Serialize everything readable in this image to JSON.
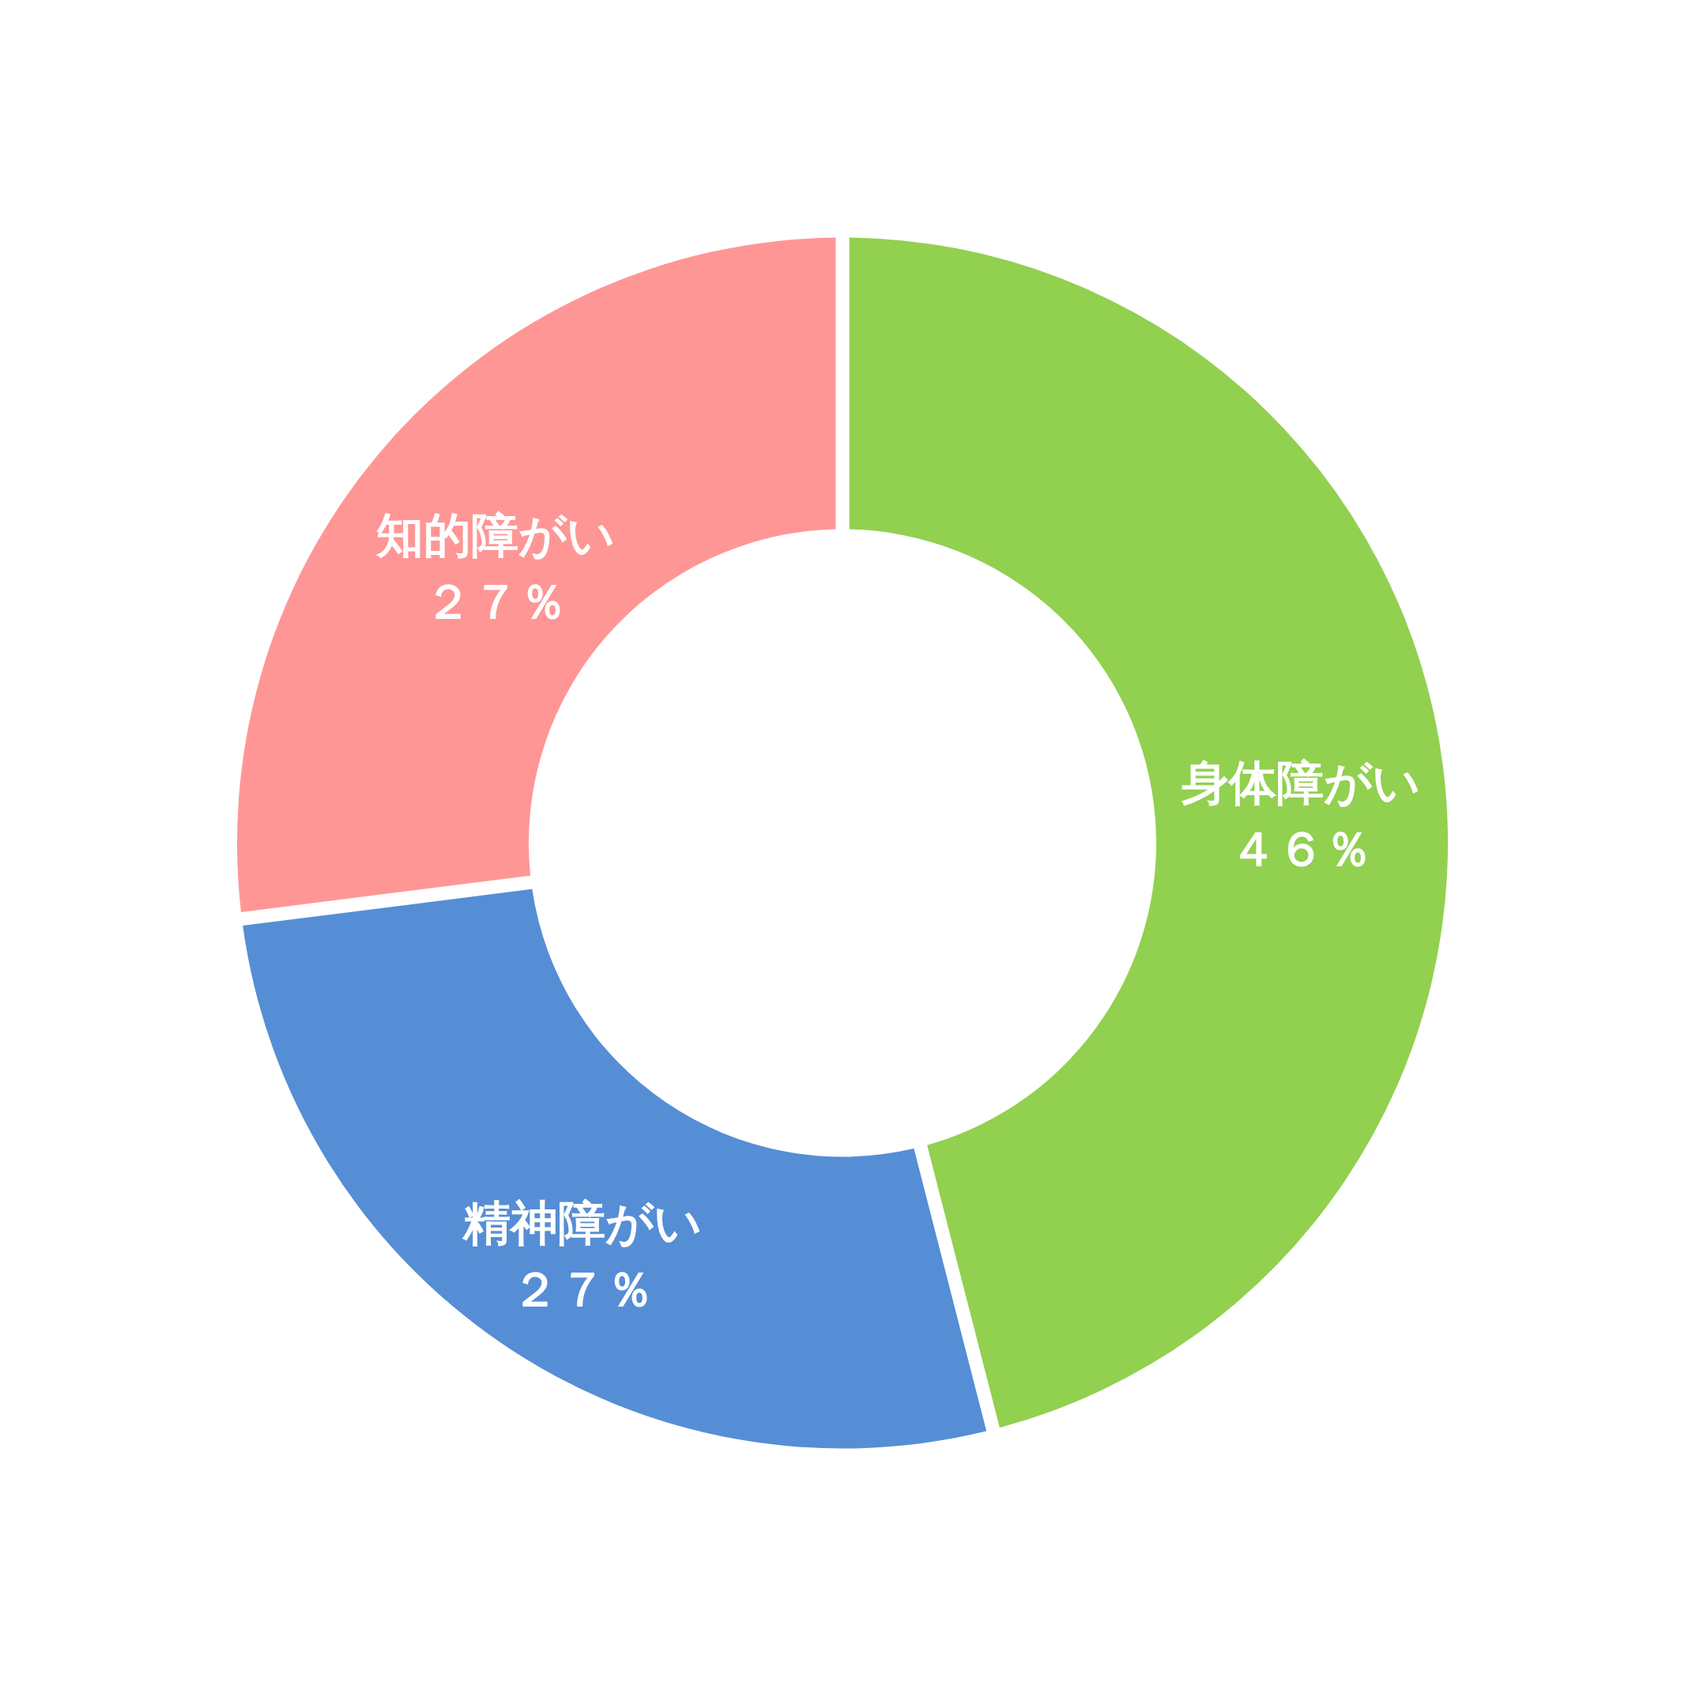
{
  "chart_data": {
    "type": "donut",
    "categories": [
      "身体障がい",
      "精神障がい",
      "知的障がい"
    ],
    "values": [
      46,
      27,
      27
    ],
    "colors": [
      "#92d050",
      "#558ed5",
      "#ff9696"
    ],
    "value_labels": [
      "４６％",
      "２７％",
      "２７％"
    ]
  }
}
